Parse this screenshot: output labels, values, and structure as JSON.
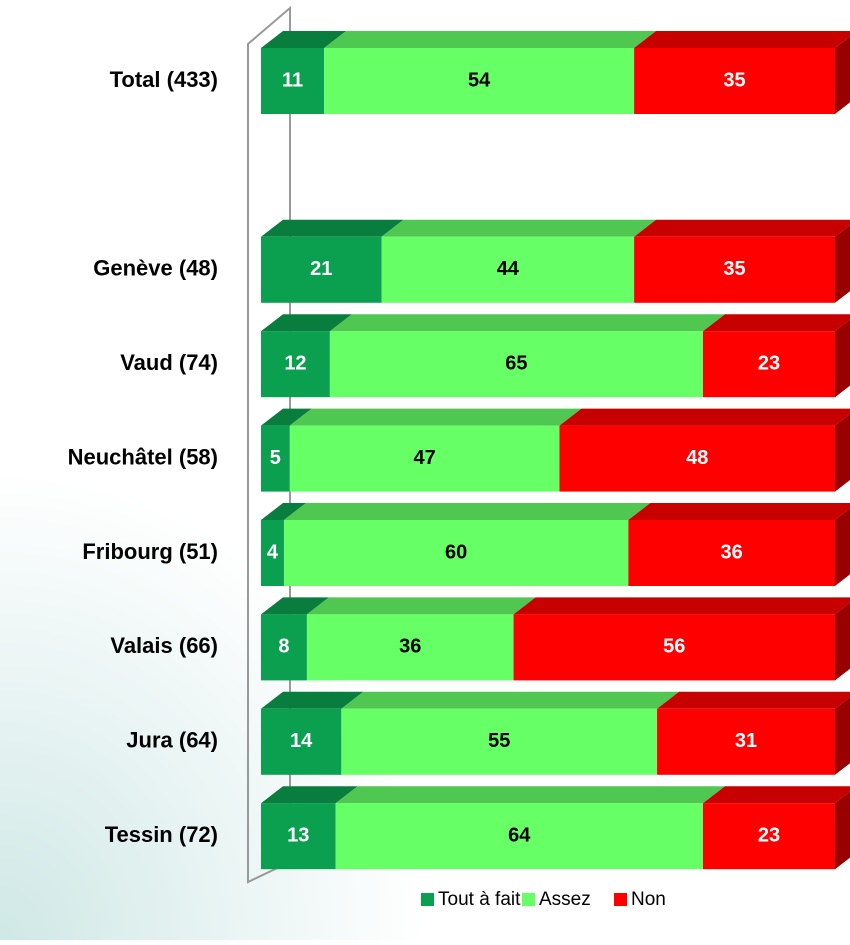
{
  "chart_data": {
    "type": "stacked-bar-horizontal",
    "categories": [
      "Total (433)",
      null,
      "Genève (48)",
      "Vaud (74)",
      "Neuchâtel (58)",
      "Fribourg (51)",
      "Valais (66)",
      "Jura (64)",
      "Tessin (72)"
    ],
    "series": [
      {
        "name": "Tout à fait",
        "color": "#0aa050",
        "values": [
          11,
          null,
          21,
          12,
          5,
          4,
          8,
          14,
          13
        ]
      },
      {
        "name": "Assez",
        "color": "#66ff66",
        "values": [
          54,
          null,
          44,
          65,
          47,
          60,
          36,
          55,
          64
        ]
      },
      {
        "name": "Non",
        "color": "#ff0000",
        "values": [
          35,
          null,
          35,
          23,
          48,
          36,
          56,
          31,
          23
        ]
      }
    ],
    "xlim": [
      0,
      100
    ]
  }
}
